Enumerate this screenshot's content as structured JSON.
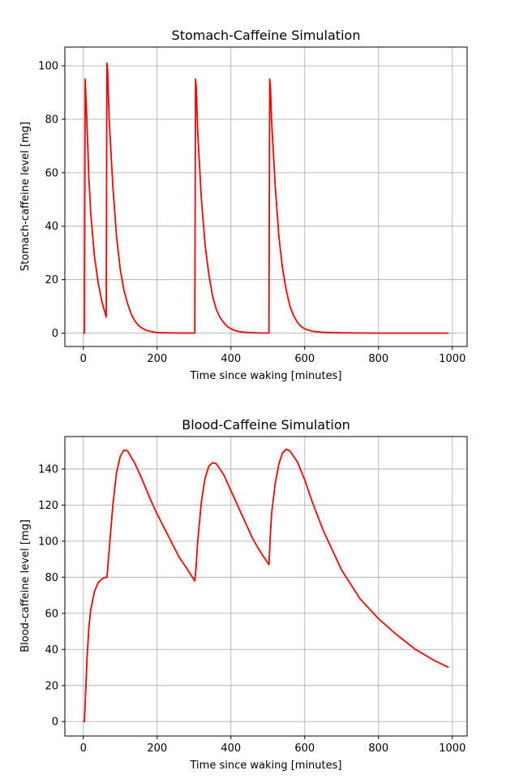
{
  "chart_data": [
    {
      "type": "line",
      "title": "Stomach-Caffeine Simulation",
      "xlabel": "Time since waking [minutes]",
      "ylabel": "Stomach-caffeine level [mg]",
      "xlim": [
        -50,
        1040
      ],
      "ylim": [
        -5,
        107
      ],
      "xticks": [
        0,
        200,
        400,
        600,
        800,
        1000
      ],
      "yticks": [
        0,
        20,
        40,
        60,
        80,
        100
      ],
      "grid": true,
      "series": [
        {
          "color": "#ff0000",
          "x": [
            0,
            3,
            5,
            10,
            15,
            20,
            30,
            40,
            50,
            62,
            64,
            66,
            70,
            80,
            90,
            100,
            110,
            120,
            130,
            140,
            150,
            160,
            170,
            180,
            190,
            200,
            225,
            250,
            275,
            302,
            304,
            306,
            310,
            320,
            330,
            340,
            350,
            360,
            370,
            380,
            390,
            400,
            410,
            420,
            440,
            460,
            480,
            503,
            505,
            507,
            510,
            520,
            530,
            540,
            550,
            560,
            570,
            580,
            590,
            600,
            620,
            650,
            700,
            800,
            900,
            990
          ],
          "y": [
            0,
            0,
            95,
            78,
            58,
            45,
            29,
            19,
            12,
            6,
            101,
            98,
            80,
            55,
            36,
            24,
            16,
            11,
            7,
            4.5,
            2.8,
            1.8,
            1.1,
            0.7,
            0.4,
            0.2,
            0.1,
            0.05,
            0.02,
            0,
            95,
            92,
            75,
            50,
            33,
            22,
            14,
            9,
            6,
            4,
            2.5,
            1.6,
            1.0,
            0.6,
            0.3,
            0.15,
            0.05,
            0,
            95,
            92,
            80,
            55,
            36,
            24,
            16,
            10,
            6.5,
            4,
            2.5,
            1.6,
            0.7,
            0.3,
            0.1,
            0,
            0,
            0
          ]
        }
      ]
    },
    {
      "type": "line",
      "title": "Blood-Caffeine Simulation",
      "xlabel": "Time since waking [minutes]",
      "ylabel": "Blood-caffeine level [mg]",
      "xlim": [
        -50,
        1040
      ],
      "ylim": [
        -8,
        158
      ],
      "xticks": [
        0,
        200,
        400,
        600,
        800,
        1000
      ],
      "yticks": [
        0,
        20,
        40,
        60,
        80,
        100,
        120,
        140
      ],
      "grid": true,
      "series": [
        {
          "color": "#ff0000",
          "x": [
            0,
            3,
            5,
            10,
            15,
            20,
            30,
            40,
            50,
            60,
            64,
            70,
            80,
            90,
            100,
            110,
            120,
            140,
            160,
            180,
            200,
            220,
            240,
            260,
            280,
            302,
            305,
            310,
            320,
            330,
            340,
            350,
            360,
            380,
            400,
            420,
            440,
            460,
            480,
            503,
            506,
            510,
            520,
            530,
            540,
            550,
            560,
            580,
            600,
            620,
            650,
            700,
            750,
            800,
            850,
            900,
            950,
            990
          ],
          "y": [
            0,
            0,
            10,
            35,
            52,
            62,
            72,
            77,
            79,
            80,
            80,
            95,
            120,
            138,
            147,
            150.5,
            150,
            143,
            134,
            124,
            115,
            107,
            99,
            91,
            85,
            78,
            84,
            100,
            122,
            135,
            141.5,
            143.5,
            143,
            137,
            128,
            119,
            110,
            101,
            94,
            87,
            100,
            115,
            132,
            143,
            149,
            151,
            150,
            144,
            134,
            122,
            106,
            84,
            68,
            57,
            48,
            40,
            34,
            30
          ]
        }
      ]
    }
  ]
}
